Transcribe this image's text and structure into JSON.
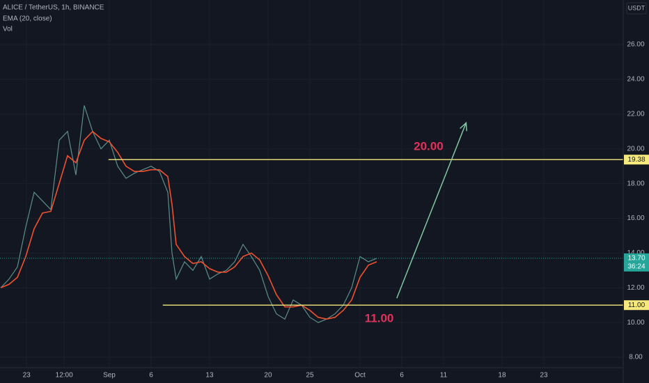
{
  "chart_data": {
    "type": "line",
    "title": "ALICE / TetherUS, 1h, BINANCE",
    "volume_label": "Vol",
    "currency": "USDT",
    "x": [
      -12,
      -11,
      -10,
      -9,
      -8,
      -7,
      -6,
      -5,
      -4,
      -3,
      -2,
      -1,
      0,
      1,
      2,
      3,
      4,
      5,
      6,
      7,
      8,
      8.5,
      9,
      10,
      11,
      12,
      13,
      14,
      15,
      16,
      17,
      18,
      19,
      20,
      21,
      22,
      23,
      24,
      25,
      26,
      27,
      28,
      29,
      30,
      31,
      32,
      33
    ],
    "series": [
      {
        "color": "#5d8f8a",
        "values": [
          12.0,
          12.5,
          13.2,
          15.5,
          17.5,
          17.0,
          16.5,
          20.5,
          21.0,
          18.5,
          22.5,
          21.0,
          20.0,
          20.5,
          19.0,
          18.3,
          18.6,
          18.8,
          19.0,
          18.7,
          17.5,
          14.0,
          12.5,
          13.5,
          13.0,
          13.8,
          12.5,
          12.8,
          13.0,
          13.5,
          14.5,
          13.8,
          13.0,
          11.5,
          10.5,
          10.2,
          11.3,
          11.0,
          10.3,
          10.0,
          10.2,
          10.5,
          11.0,
          12.0,
          13.8,
          13.5,
          13.7
        ]
      },
      {
        "name": "EMA (20, close)",
        "color": "#f0512f",
        "values": [
          12.0,
          12.2,
          12.6,
          13.8,
          15.4,
          16.3,
          16.4,
          18.0,
          19.6,
          19.2,
          20.5,
          21.0,
          20.6,
          20.4,
          19.8,
          19.0,
          18.7,
          18.7,
          18.8,
          18.8,
          18.4,
          16.8,
          14.5,
          13.8,
          13.4,
          13.5,
          13.1,
          12.9,
          12.9,
          13.2,
          13.8,
          14.0,
          13.6,
          12.7,
          11.6,
          10.9,
          10.9,
          11.0,
          10.7,
          10.3,
          10.2,
          10.3,
          10.7,
          11.3,
          12.6,
          13.3,
          13.5
        ]
      }
    ],
    "xlim": [
      -12.08,
      62.5
    ],
    "ylim": [
      7.4,
      28.57
    ],
    "xticks": [
      {
        "value": -8.9,
        "label": "23"
      },
      {
        "value": -4.4,
        "label": "12:00"
      },
      {
        "value": 1,
        "label": "Sep"
      },
      {
        "value": 6,
        "label": "6"
      },
      {
        "value": 13,
        "label": "13"
      },
      {
        "value": 20,
        "label": "20"
      },
      {
        "value": 25,
        "label": "25"
      },
      {
        "value": 31,
        "label": "Oct"
      },
      {
        "value": 36,
        "label": "6"
      },
      {
        "value": 41,
        "label": "11"
      },
      {
        "value": 48,
        "label": "18"
      },
      {
        "value": 53,
        "label": "23"
      }
    ],
    "yticks": [
      {
        "value": 8,
        "label": "8.00"
      },
      {
        "value": 10,
        "label": "10.00"
      },
      {
        "value": 12,
        "label": "12.00"
      },
      {
        "value": 14,
        "label": "14.00"
      },
      {
        "value": 16,
        "label": "16.00"
      },
      {
        "value": 18,
        "label": "18.00"
      },
      {
        "value": 20,
        "label": "20.00"
      },
      {
        "value": 22,
        "label": "22.00"
      },
      {
        "value": 24,
        "label": "24.00"
      },
      {
        "value": 26,
        "label": "26.00"
      }
    ],
    "levels": [
      {
        "value": 19.38,
        "label": "19.38",
        "start_x": 0.9,
        "color": "#f5e87c"
      },
      {
        "value": 11.0,
        "label": "11.00",
        "start_x": 7.4,
        "color": "#f5e87c"
      }
    ],
    "last_price": {
      "value": 13.7,
      "label": "13.70",
      "countdown": "36:24",
      "color": "#26a69a"
    },
    "annotations": [
      {
        "text": "20.00",
        "x": 39.2,
        "y": 20.1,
        "color": "#e0325a"
      },
      {
        "text": "11.00",
        "x": 33.3,
        "y": 10.2,
        "color": "#e0325a"
      }
    ],
    "arrow": {
      "x": [
        35.4,
        43.7
      ],
      "y": [
        11.4,
        21.5
      ],
      "color": "#7fc8a0"
    },
    "grid": true
  }
}
